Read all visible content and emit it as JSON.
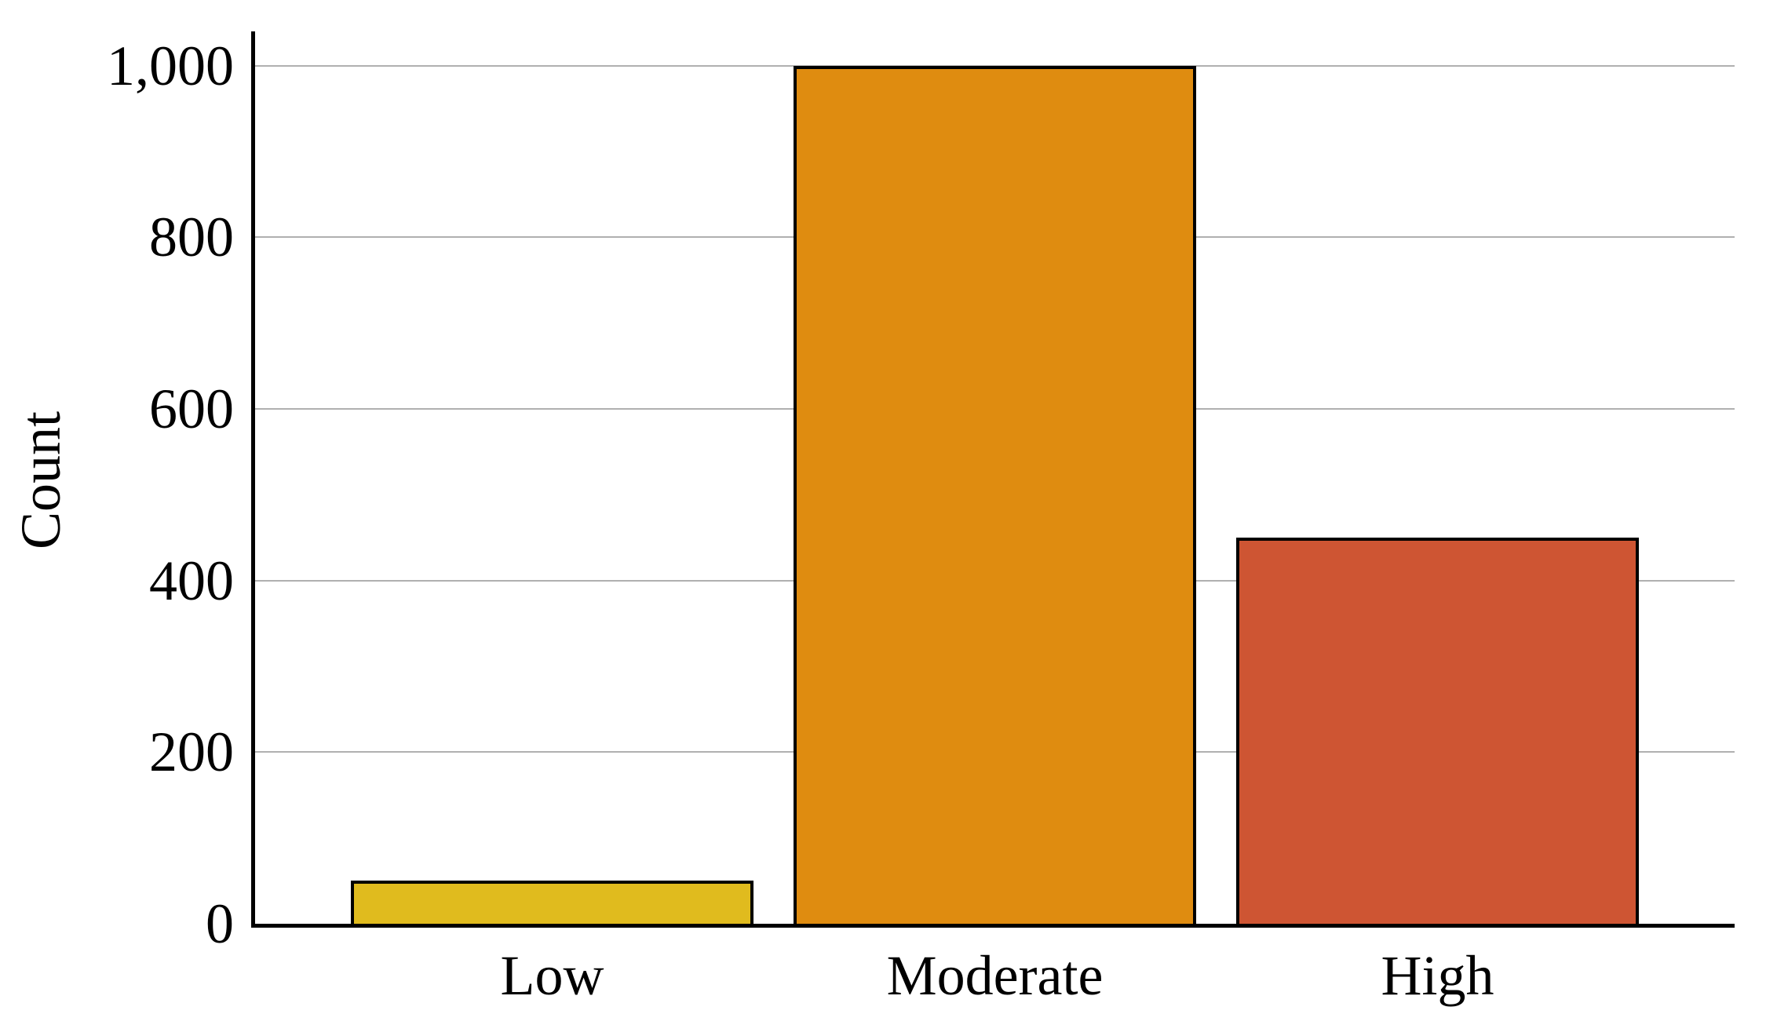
{
  "chart_data": {
    "type": "bar",
    "categories": [
      "Low",
      "Moderate",
      "High"
    ],
    "values": [
      50,
      1000,
      450
    ],
    "bar_colors": [
      "#e0bb1e",
      "#df8c10",
      "#ce5533"
    ],
    "bar_border_color": "#000000",
    "title": "",
    "xlabel": "",
    "ylabel": "Count",
    "ylim": [
      0,
      1040
    ],
    "yticks": [
      {
        "value": 0,
        "label": "0"
      },
      {
        "value": 200,
        "label": "200"
      },
      {
        "value": 400,
        "label": "400"
      },
      {
        "value": 600,
        "label": "600"
      },
      {
        "value": 800,
        "label": "800"
      },
      {
        "value": 1000,
        "label": "1,000"
      }
    ],
    "grid": "horizontal",
    "gridline_color": "#b0b0b0",
    "axis_color": "#000000",
    "background_color": "#ffffff",
    "legend": "none"
  }
}
